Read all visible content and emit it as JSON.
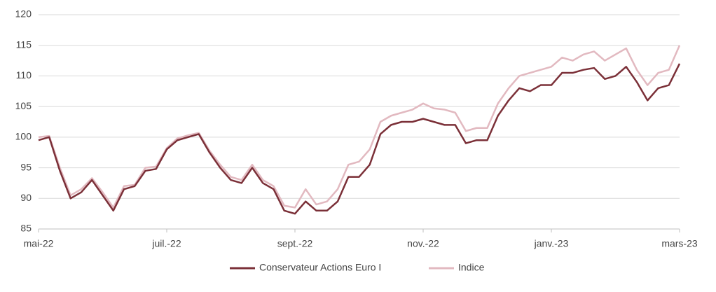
{
  "chart_data": {
    "type": "line",
    "categories": [
      "mai-22",
      null,
      null,
      null,
      null,
      null,
      null,
      null,
      null,
      null,
      null,
      null,
      "juil.-22",
      null,
      null,
      null,
      null,
      null,
      null,
      null,
      null,
      null,
      null,
      null,
      "sept.-22",
      null,
      null,
      null,
      null,
      null,
      null,
      null,
      null,
      null,
      null,
      null,
      "nov.-22",
      null,
      null,
      null,
      null,
      null,
      null,
      null,
      null,
      null,
      null,
      null,
      "janv.-23",
      null,
      null,
      null,
      null,
      null,
      null,
      null,
      null,
      null,
      null,
      null,
      "mars-23"
    ],
    "series": [
      {
        "name": "Conservateur Actions Euro I",
        "color": "#7b3038",
        "values": [
          99.5,
          100,
          94.5,
          90,
          91,
          93,
          90.5,
          88,
          91.5,
          92,
          94.5,
          94.8,
          98,
          99.5,
          100,
          100.5,
          97.5,
          95,
          93,
          92.5,
          95,
          92.5,
          91.5,
          88,
          87.5,
          89.5,
          88,
          88,
          89.5,
          93.5,
          93.5,
          95.5,
          100.5,
          102,
          102.5,
          102.5,
          103,
          102.5,
          102,
          102,
          99,
          99.5,
          99.5,
          103.5,
          106,
          108,
          107.5,
          108.5,
          108.5,
          110.5,
          110.5,
          111,
          111.3,
          109.5,
          110,
          111.5,
          109,
          106,
          108,
          108.5,
          112
        ]
      },
      {
        "name": "Indice",
        "color": "#e2b9c0",
        "values": [
          100,
          100.2,
          95,
          90.5,
          91.5,
          93.3,
          91,
          88.5,
          92,
          92.2,
          95,
          95.2,
          98.2,
          99.8,
          100.3,
          100.7,
          97.8,
          95.5,
          93.5,
          93,
          95.5,
          93,
          92,
          88.8,
          88.5,
          91.5,
          89,
          89.5,
          91.5,
          95.5,
          96,
          98,
          102.5,
          103.5,
          104,
          104.5,
          105.5,
          104.7,
          104.5,
          104,
          101,
          101.5,
          101.5,
          105.5,
          108,
          110,
          110.5,
          111,
          111.5,
          113,
          112.5,
          113.5,
          114,
          112.5,
          113.5,
          114.5,
          111,
          108.5,
          110.5,
          111,
          115
        ]
      }
    ],
    "ylim": [
      85,
      120
    ],
    "yticks": [
      85,
      90,
      95,
      100,
      105,
      110,
      115,
      120
    ],
    "grid": true,
    "legend": "bottom"
  }
}
